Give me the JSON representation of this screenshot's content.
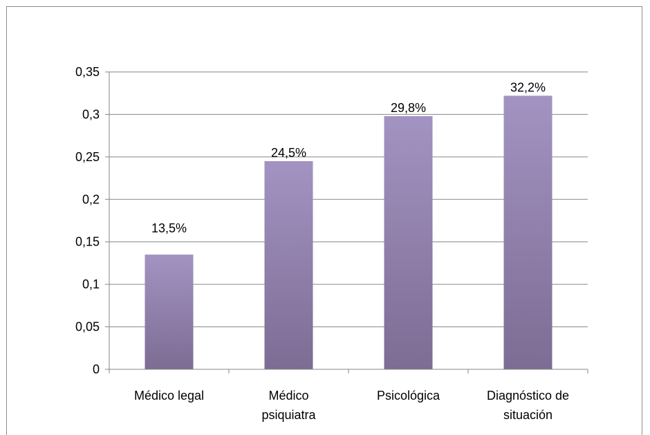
{
  "chart_data": {
    "type": "bar",
    "categories": [
      [
        "Médico legal"
      ],
      [
        "Médico",
        "psiquiatra"
      ],
      [
        "Psicológica"
      ],
      [
        "Diagnóstico de",
        "situación"
      ]
    ],
    "values": [
      0.135,
      0.245,
      0.298,
      0.322
    ],
    "data_labels": [
      "13,5%",
      "24,5%",
      "29,8%",
      "32,2%"
    ],
    "y_ticks": [
      0,
      0.05,
      0.1,
      0.15,
      0.2,
      0.25,
      0.3,
      0.35
    ],
    "y_tick_labels": [
      "0",
      "0,05",
      "0,1",
      "0,15",
      "0,2",
      "0,25",
      "0,3",
      "0,35"
    ],
    "ylim": [
      0,
      0.35
    ],
    "grid": true,
    "legend": "none",
    "colors": {
      "bar_top": "#a393c2",
      "bar_bottom": "#7d6c93",
      "gridline": "#868686",
      "axis": "#868686"
    }
  }
}
